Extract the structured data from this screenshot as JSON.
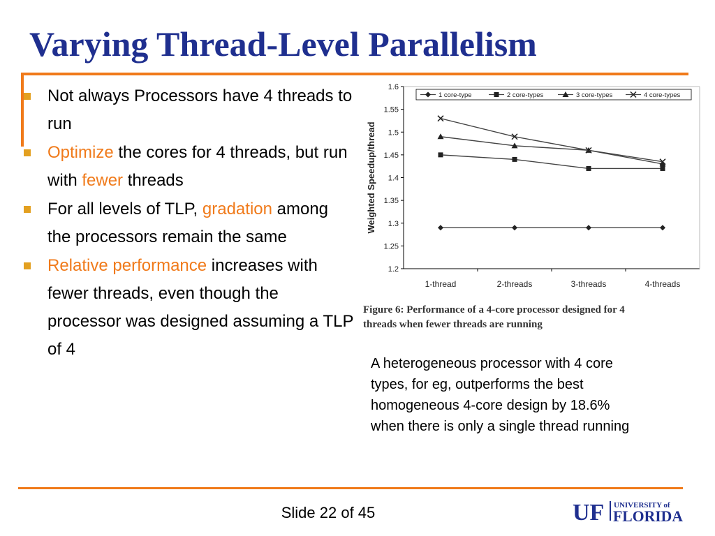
{
  "slide": {
    "title": "Varying Thread-Level Parallelism",
    "bullets": [
      {
        "parts": [
          {
            "text": "Not always Processors have 4 threads to run",
            "hl": false
          }
        ]
      },
      {
        "parts": [
          {
            "text": "Optimize",
            "hl": true
          },
          {
            "text": " the cores for 4 threads, but run with ",
            "hl": false
          },
          {
            "text": "fewer",
            "hl": true
          },
          {
            "text": " threads",
            "hl": false
          }
        ]
      },
      {
        "parts": [
          {
            "text": "For all levels of TLP, ",
            "hl": false
          },
          {
            "text": "gradation",
            "hl": true
          },
          {
            "text": " among the processors remain the same",
            "hl": false
          }
        ]
      },
      {
        "parts": [
          {
            "text": "Relative performance",
            "hl": true
          },
          {
            "text": " increases with fewer threads, even though the processor was designed assuming a TLP of 4",
            "hl": false
          }
        ]
      }
    ],
    "caption_lines": [
      "Figure 6:  Performance of a 4-core processor designed for 4",
      "threads when fewer threads are running"
    ],
    "note_lines": [
      "A heterogeneous processor with 4 core",
      "types, for eg, outperforms the best",
      "homogeneous 4-core design by 18.6%",
      "when there is only a single thread running"
    ],
    "footer": "Slide 22 of 45",
    "logo": {
      "uf": "UF",
      "university_of": "UNIVERSITY of",
      "florida": "FLORIDA"
    },
    "colors": {
      "title": "#1f2f8f",
      "accent": "#f07a1a",
      "bullet": "#e3a020",
      "logo": "#1f2f8f"
    }
  },
  "chart_data": {
    "type": "line",
    "categories": [
      "1-thread",
      "2-threads",
      "3-threads",
      "4-threads"
    ],
    "ylabel": "Weighted Speedup/thread",
    "xlabel": "",
    "ylim": [
      1.2,
      1.6
    ],
    "yticks": [
      1.2,
      1.25,
      1.3,
      1.35,
      1.4,
      1.45,
      1.5,
      1.55,
      1.6
    ],
    "grid": false,
    "legend_position": "top",
    "series": [
      {
        "name": "1 core-type",
        "marker": "diamond",
        "values": [
          1.29,
          1.29,
          1.29,
          1.29
        ]
      },
      {
        "name": "2 core-types",
        "marker": "square",
        "values": [
          1.45,
          1.44,
          1.42,
          1.42
        ]
      },
      {
        "name": "3 core-types",
        "marker": "triangle",
        "values": [
          1.49,
          1.47,
          1.46,
          1.43
        ]
      },
      {
        "name": "4 core-types",
        "marker": "x",
        "values": [
          1.53,
          1.49,
          1.46,
          1.435
        ]
      }
    ]
  }
}
